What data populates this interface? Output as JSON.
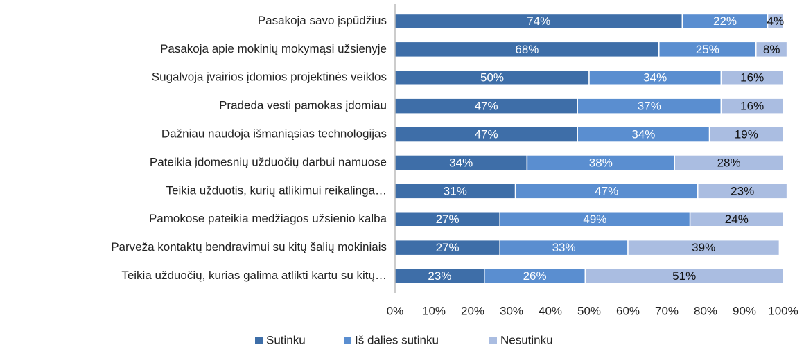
{
  "chart_data": {
    "type": "stacked_bar_horizontal",
    "categories": [
      "Pasakoja savo įspūdžius",
      "Pasakoja apie mokinių mokymąsi užsienyje",
      "Sugalvoja įvairios įdomios projektinės veiklos",
      "Pradeda vesti pamokas įdomiau",
      "Dažniau naudoja išmaniąsias technologijas",
      "Pateikia įdomesnių užduočių darbui namuose",
      "Teikia užduotis, kurių atlikimui reikalinga…",
      "Pamokose pateikia medžiagos užsienio kalba",
      "Parveža kontaktų bendravimui su kitų šalių mokiniais",
      "Teikia užduočių, kurias galima atlikti kartu su kitų…"
    ],
    "series": [
      {
        "name": "Sutinku",
        "color": "#3e6ea8",
        "label_color": "#ffffff",
        "values": [
          74,
          68,
          50,
          47,
          47,
          34,
          31,
          27,
          27,
          23
        ],
        "value_labels": [
          "74%",
          "68%",
          "50%",
          "47%",
          "47%",
          "34%",
          "31%",
          "27%",
          "27%",
          "23%"
        ]
      },
      {
        "name": "Iš dalies sutinku",
        "color": "#5a8ed0",
        "label_color": "#ffffff",
        "values": [
          22,
          25,
          34,
          37,
          34,
          38,
          47,
          49,
          33,
          26
        ],
        "value_labels": [
          "22%",
          "25%",
          "34%",
          "37%",
          "34%",
          "38%",
          "47%",
          "49%",
          "33%",
          "26%"
        ]
      },
      {
        "name": "Nesutinku",
        "color": "#aabde1",
        "label_color": "#111111",
        "values": [
          4,
          8,
          16,
          16,
          19,
          28,
          23,
          24,
          39,
          51
        ],
        "value_labels": [
          "4%",
          "8%",
          "16%",
          "16%",
          "19%",
          "28%",
          "23%",
          "24%",
          "39%",
          "51%"
        ]
      }
    ],
    "xlim": [
      0,
      100
    ],
    "xticks": [
      {
        "value": 0,
        "label": "0%"
      },
      {
        "value": 10,
        "label": "10%"
      },
      {
        "value": 20,
        "label": "20%"
      },
      {
        "value": 30,
        "label": "30%"
      },
      {
        "value": 40,
        "label": "40%"
      },
      {
        "value": 50,
        "label": "50%"
      },
      {
        "value": 60,
        "label": "60%"
      },
      {
        "value": 70,
        "label": "70%"
      },
      {
        "value": 80,
        "label": "80%"
      },
      {
        "value": 90,
        "label": "90%"
      },
      {
        "value": 100,
        "label": "100%"
      }
    ],
    "legend": "bottom"
  }
}
